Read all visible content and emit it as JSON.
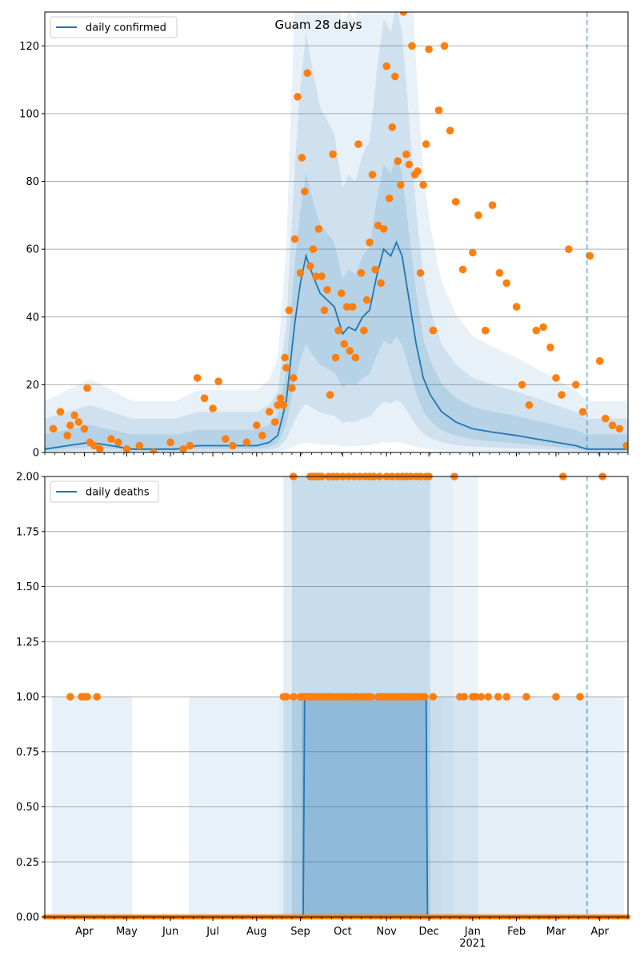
{
  "figure": {
    "title": "Guam 28 days"
  },
  "colors": {
    "line": "#1f77b4",
    "points": "#ff7f0e",
    "band": "#1f77b4",
    "grid": "#b0b0b0",
    "forecast_line": "#1f77b4"
  },
  "chart_data": [
    {
      "type": "line",
      "name": "confirmed",
      "legend": "daily confirmed",
      "ylim": [
        0,
        130
      ],
      "yticks": [
        0,
        20,
        40,
        60,
        80,
        100,
        120
      ],
      "ytick_labels": [
        "0",
        "20",
        "40",
        "60",
        "80",
        "100",
        "120"
      ],
      "grid": "horizontal",
      "legend_position": "top-left",
      "x_is_date": true,
      "xlim": [
        "2020-03-04",
        "2021-04-21"
      ],
      "forecast_start": "2021-03-23",
      "series": [
        {
          "name": "daily confirmed",
          "x": [
            "2020-03-04",
            "2020-03-20",
            "2020-04-05",
            "2020-04-20",
            "2020-05-05",
            "2020-05-20",
            "2020-06-05",
            "2020-06-20",
            "2020-07-05",
            "2020-07-20",
            "2020-08-01",
            "2020-08-10",
            "2020-08-16",
            "2020-08-22",
            "2020-08-28",
            "2020-09-01",
            "2020-09-05",
            "2020-09-10",
            "2020-09-15",
            "2020-09-20",
            "2020-09-25",
            "2020-10-01",
            "2020-10-05",
            "2020-10-10",
            "2020-10-15",
            "2020-10-20",
            "2020-10-25",
            "2020-10-30",
            "2020-11-04",
            "2020-11-08",
            "2020-11-12",
            "2020-11-17",
            "2020-11-22",
            "2020-11-27",
            "2020-12-02",
            "2020-12-10",
            "2020-12-20",
            "2021-01-01",
            "2021-01-15",
            "2021-02-01",
            "2021-02-15",
            "2021-03-01",
            "2021-03-15",
            "2021-03-23",
            "2021-04-05",
            "2021-04-21"
          ],
          "y": [
            1,
            2,
            3,
            2,
            1,
            1,
            1,
            2,
            2,
            2,
            2,
            3,
            5,
            15,
            38,
            50,
            58,
            52,
            47,
            45,
            43,
            35,
            37,
            36,
            40,
            42,
            52,
            60,
            58,
            62,
            58,
            45,
            32,
            22,
            17,
            12,
            9,
            7,
            6,
            5,
            4,
            3,
            2,
            1,
            1,
            1
          ]
        },
        {
          "name": "observed",
          "style": "points",
          "x": [
            "2020-03-10",
            "2020-03-15",
            "2020-03-20",
            "2020-03-22",
            "2020-03-25",
            "2020-03-28",
            "2020-04-01",
            "2020-04-03",
            "2020-04-05",
            "2020-04-08",
            "2020-04-12",
            "2020-04-20",
            "2020-04-25",
            "2020-05-01",
            "2020-05-10",
            "2020-05-20",
            "2020-06-01",
            "2020-06-10",
            "2020-06-15",
            "2020-06-20",
            "2020-06-25",
            "2020-07-01",
            "2020-07-05",
            "2020-07-10",
            "2020-07-15",
            "2020-07-25",
            "2020-08-01",
            "2020-08-05",
            "2020-08-10",
            "2020-08-14",
            "2020-08-16",
            "2020-08-18",
            "2020-08-20",
            "2020-08-21",
            "2020-08-22",
            "2020-08-24",
            "2020-08-26",
            "2020-08-27",
            "2020-08-28",
            "2020-08-30",
            "2020-09-01",
            "2020-09-02",
            "2020-09-04",
            "2020-09-06",
            "2020-09-08",
            "2020-09-10",
            "2020-09-12",
            "2020-09-14",
            "2020-09-16",
            "2020-09-18",
            "2020-09-20",
            "2020-09-22",
            "2020-09-24",
            "2020-09-26",
            "2020-09-28",
            "2020-09-30",
            "2020-10-02",
            "2020-10-04",
            "2020-10-06",
            "2020-10-08",
            "2020-10-10",
            "2020-10-12",
            "2020-10-14",
            "2020-10-16",
            "2020-10-18",
            "2020-10-20",
            "2020-10-22",
            "2020-10-24",
            "2020-10-26",
            "2020-10-28",
            "2020-10-30",
            "2020-11-01",
            "2020-11-03",
            "2020-11-05",
            "2020-11-07",
            "2020-11-09",
            "2020-11-11",
            "2020-11-13",
            "2020-11-15",
            "2020-11-17",
            "2020-11-19",
            "2020-11-21",
            "2020-11-23",
            "2020-11-25",
            "2020-11-27",
            "2020-11-29",
            "2020-12-01",
            "2020-12-04",
            "2020-12-08",
            "2020-12-12",
            "2020-12-16",
            "2020-12-20",
            "2020-12-25",
            "2021-01-01",
            "2021-01-05",
            "2021-01-10",
            "2021-01-15",
            "2021-01-20",
            "2021-01-25",
            "2021-02-01",
            "2021-02-05",
            "2021-02-10",
            "2021-02-15",
            "2021-02-20",
            "2021-02-25",
            "2021-03-01",
            "2021-03-05",
            "2021-03-10",
            "2021-03-15",
            "2021-03-20",
            "2021-03-25",
            "2021-04-01",
            "2021-04-05",
            "2021-04-10",
            "2021-04-15",
            "2021-04-20"
          ],
          "y": [
            7,
            12,
            5,
            8,
            11,
            9,
            7,
            19,
            3,
            2,
            1,
            4,
            3,
            1,
            2,
            0,
            3,
            1,
            2,
            22,
            16,
            13,
            21,
            4,
            2,
            3,
            8,
            5,
            12,
            9,
            14,
            16,
            14,
            28,
            25,
            42,
            19,
            22,
            63,
            105,
            53,
            87,
            77,
            112,
            55,
            60,
            52,
            66,
            52,
            42,
            48,
            17,
            88,
            28,
            36,
            47,
            32,
            43,
            30,
            43,
            28,
            91,
            53,
            36,
            45,
            62,
            82,
            54,
            67,
            50,
            66,
            114,
            75,
            96,
            111,
            86,
            79,
            130,
            88,
            85,
            120,
            82,
            83,
            53,
            79,
            91,
            119,
            36,
            101,
            120,
            95,
            74,
            54,
            59,
            70,
            36,
            73,
            53,
            50,
            43,
            20,
            14,
            36,
            37,
            31,
            22,
            17,
            60,
            20,
            12,
            58,
            27,
            10,
            8,
            7,
            2
          ],
          "ylim_note": "values clipped by axis"
        }
      ]
    },
    {
      "type": "line",
      "name": "deaths",
      "legend": "daily deaths",
      "ylim": [
        0,
        2
      ],
      "yticks": [
        0,
        0.25,
        0.5,
        0.75,
        1.0,
        1.25,
        1.5,
        1.75,
        2.0
      ],
      "ytick_labels": [
        "0.00",
        "0.25",
        "0.50",
        "0.75",
        "1.00",
        "1.25",
        "1.50",
        "1.75",
        "2.00"
      ],
      "grid": "horizontal",
      "legend_position": "top-left",
      "x_is_date": true,
      "xlim": [
        "2020-03-04",
        "2021-04-21"
      ],
      "forecast_start": "2021-03-23",
      "x_tick_labels": [
        "Apr",
        "May",
        "Jun",
        "Jul",
        "Aug",
        "Sep",
        "Oct",
        "Nov",
        "Dec",
        "Jan",
        "Feb",
        "Mar",
        "Apr"
      ],
      "x_tick_dates": [
        "2020-04-01",
        "2020-05-01",
        "2020-06-01",
        "2020-07-01",
        "2020-08-01",
        "2020-09-01",
        "2020-10-01",
        "2020-11-01",
        "2020-12-01",
        "2021-01-01",
        "2021-02-01",
        "2021-03-01",
        "2021-04-01"
      ],
      "x_year_label": "2021",
      "series": [
        {
          "name": "daily deaths",
          "x": [
            "2020-03-04",
            "2020-09-03",
            "2020-09-04",
            "2020-09-05",
            "2020-11-28",
            "2020-11-29",
            "2020-11-30",
            "2021-04-21"
          ],
          "y": [
            0,
            0,
            1,
            1,
            1,
            1,
            0,
            0
          ]
        },
        {
          "name": "observed",
          "style": "points",
          "x": [
            "2020-03-22",
            "2020-03-30",
            "2020-04-01",
            "2020-04-03",
            "2020-04-10",
            "2020-08-20",
            "2020-08-22",
            "2020-08-27",
            "2020-09-01",
            "2020-09-03",
            "2020-09-05",
            "2020-09-07",
            "2020-09-09",
            "2020-09-12",
            "2020-09-14",
            "2020-09-16",
            "2020-09-19",
            "2020-09-21",
            "2020-09-23",
            "2020-09-26",
            "2020-09-29",
            "2020-10-01",
            "2020-10-03",
            "2020-10-06",
            "2020-10-09",
            "2020-10-11",
            "2020-10-14",
            "2020-10-17",
            "2020-10-19",
            "2020-10-21",
            "2020-10-26",
            "2020-10-28",
            "2020-10-30",
            "2020-11-02",
            "2020-11-04",
            "2020-11-06",
            "2020-11-09",
            "2020-11-11",
            "2020-11-13",
            "2020-11-16",
            "2020-11-18",
            "2020-11-20",
            "2020-11-23",
            "2020-11-26",
            "2020-11-28",
            "2020-12-04",
            "2020-12-23",
            "2020-12-26",
            "2021-01-01",
            "2021-01-03",
            "2021-01-07",
            "2021-01-12",
            "2021-01-19",
            "2021-01-25",
            "2021-02-08",
            "2021-03-01",
            "2021-03-18"
          ],
          "y": [
            1,
            1,
            1,
            1,
            1,
            1,
            1,
            1,
            1,
            1,
            1,
            1,
            1,
            1,
            1,
            1,
            1,
            1,
            1,
            1,
            1,
            1,
            1,
            1,
            1,
            1,
            1,
            1,
            1,
            1,
            1,
            1,
            1,
            1,
            1,
            1,
            1,
            1,
            1,
            1,
            1,
            1,
            1,
            1,
            1,
            1,
            1,
            1,
            1,
            1,
            1,
            1,
            1,
            1,
            1,
            1,
            1
          ],
          "x_top": [
            "2020-08-27",
            "2020-09-08",
            "2020-09-10",
            "2020-09-12",
            "2020-09-14",
            "2020-09-16",
            "2020-09-21",
            "2020-09-24",
            "2020-09-27",
            "2020-10-01",
            "2020-10-05",
            "2020-10-09",
            "2020-10-13",
            "2020-10-17",
            "2020-10-20",
            "2020-10-23",
            "2020-10-27",
            "2020-11-01",
            "2020-11-05",
            "2020-11-09",
            "2020-11-12",
            "2020-11-15",
            "2020-11-18",
            "2020-11-22",
            "2020-11-25",
            "2020-11-29",
            "2020-12-01",
            "2020-12-19",
            "2021-03-06",
            "2021-04-03"
          ],
          "y_top": 2
        }
      ]
    }
  ]
}
